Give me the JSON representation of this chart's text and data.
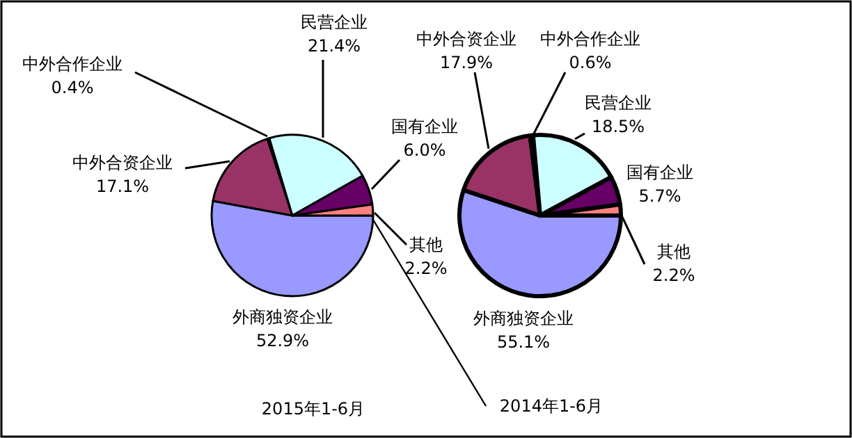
{
  "chart_data": [
    {
      "type": "pie",
      "title": "2015年1-6月",
      "categories": [
        "外商独资企业",
        "中外合资企业",
        "中外合作企业",
        "民营企业",
        "国有企业",
        "其他"
      ],
      "values": [
        52.9,
        17.1,
        0.4,
        21.4,
        6.0,
        2.2
      ],
      "value_labels": [
        "52.9%",
        "17.1%",
        "0.4%",
        "21.4%",
        "6.0%",
        "2.2%"
      ],
      "colors": [
        "#9999ff",
        "#993366",
        "#ffffcc",
        "#ccffff",
        "#660066",
        "#ff8080"
      ]
    },
    {
      "type": "pie",
      "title": "2014年1-6月",
      "categories": [
        "外商独资企业",
        "中外合资企业",
        "中外合作企业",
        "民营企业",
        "国有企业",
        "其他"
      ],
      "values": [
        55.1,
        17.9,
        0.6,
        18.5,
        5.7,
        2.2
      ],
      "value_labels": [
        "55.1%",
        "17.9%",
        "0.6%",
        "18.5%",
        "5.7%",
        "2.2%"
      ],
      "colors": [
        "#9999ff",
        "#993366",
        "#ffffcc",
        "#ccffff",
        "#660066",
        "#ff8080"
      ]
    }
  ]
}
